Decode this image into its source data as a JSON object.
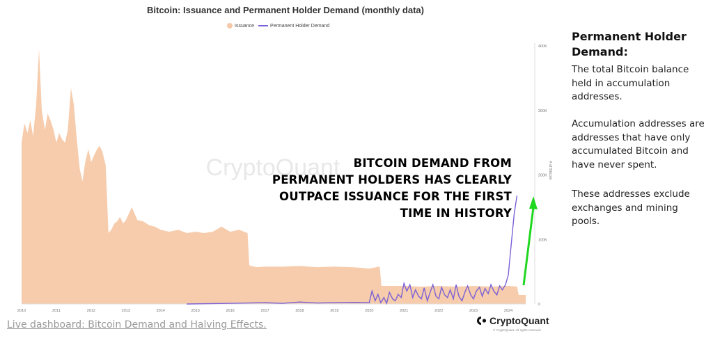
{
  "chart_title": "Bitcoin: Issuance and Permanent Holder Demand (monthly data)",
  "legend": [
    {
      "label": "Issuance",
      "color": "#f5c9a8"
    },
    {
      "label": "Permanent Holder Demand",
      "color": "#7b61d6"
    }
  ],
  "watermark": "CryptoQuant",
  "annotation": [
    "BITCOIN DEMAND FROM",
    "PERMANENT HOLDERS HAS CLEARLY",
    "OUTPACE ISSUANCE FOR THE FIRST",
    "TIME IN HISTORY"
  ],
  "sidebar": {
    "heading": "Permanent Holder Demand:",
    "paragraphs": [
      "The total Bitcoin balance held in accumulation addresses.",
      "Accumulation addresses are addresses that have only accumulated Bitcoin and have never spent.",
      "These addresses exclude exchanges and mining pools."
    ]
  },
  "footer": {
    "link": "Live dashboard: Bitcoin Demand and Halving Effects.",
    "brand": "CryptoQuant",
    "copyright": "© CryptoQuant. All rights reserved."
  },
  "colors": {
    "issuance": "#f5c9a8",
    "demand": "#7b61d6",
    "arrow": "#1fd71f"
  },
  "chart_data": {
    "type": "area",
    "title": "Bitcoin: Issuance and Permanent Holder Demand (monthly data)",
    "xlabel": "",
    "ylabel": "# of Bitcoin",
    "x_ticks": [
      "2010",
      "2011",
      "2012",
      "2013",
      "2014",
      "2015",
      "2016",
      "2017",
      "2018",
      "2019",
      "2020",
      "2021",
      "2022",
      "2023",
      "2024"
    ],
    "y_ticks": [
      "0",
      "100K",
      "200K",
      "300K",
      "400K"
    ],
    "ylim": [
      0,
      400000
    ],
    "xlim": [
      2010.0,
      2024.5
    ],
    "grid": false,
    "legend_position": "top-center",
    "series": [
      {
        "name": "Issuance",
        "type": "area",
        "x": [
          2010.0,
          2010.08,
          2010.17,
          2010.25,
          2010.33,
          2010.42,
          2010.5,
          2010.58,
          2010.67,
          2010.75,
          2010.83,
          2010.92,
          2011.0,
          2011.08,
          2011.17,
          2011.25,
          2011.33,
          2011.42,
          2011.5,
          2011.58,
          2011.67,
          2011.75,
          2011.83,
          2011.92,
          2012.0,
          2012.08,
          2012.17,
          2012.25,
          2012.33,
          2012.42,
          2012.5,
          2012.58,
          2012.67,
          2012.75,
          2012.83,
          2012.92,
          2013.0,
          2013.17,
          2013.33,
          2013.5,
          2013.67,
          2013.83,
          2014.0,
          2014.25,
          2014.5,
          2014.75,
          2015.0,
          2015.25,
          2015.5,
          2015.75,
          2016.0,
          2016.25,
          2016.5,
          2016.55,
          2016.75,
          2017.0,
          2017.5,
          2018.0,
          2018.5,
          2019.0,
          2019.5,
          2020.0,
          2020.3,
          2020.35,
          2020.6,
          2021.0,
          2021.5,
          2022.0,
          2022.5,
          2023.0,
          2023.5,
          2024.0,
          2024.25,
          2024.3,
          2024.5
        ],
        "values": [
          250000,
          280000,
          265000,
          285000,
          260000,
          310000,
          395000,
          300000,
          270000,
          295000,
          285000,
          270000,
          250000,
          265000,
          255000,
          250000,
          270000,
          335000,
          310000,
          260000,
          210000,
          190000,
          220000,
          240000,
          220000,
          230000,
          240000,
          245000,
          235000,
          215000,
          110000,
          115000,
          125000,
          128000,
          135000,
          125000,
          130000,
          150000,
          130000,
          128000,
          122000,
          120000,
          115000,
          112000,
          115000,
          110000,
          112000,
          110000,
          112000,
          120000,
          112000,
          115000,
          110000,
          60000,
          57000,
          58000,
          58000,
          59000,
          57000,
          58000,
          57000,
          55000,
          58000,
          28000,
          28000,
          28000,
          27000,
          28000,
          27000,
          28000,
          27000,
          28000,
          27000,
          14000,
          14000
        ]
      },
      {
        "name": "Permanent Holder Demand",
        "type": "line",
        "x": [
          2014.75,
          2016.0,
          2016.5,
          2017.0,
          2017.5,
          2018.0,
          2018.5,
          2019.0,
          2019.5,
          2020.0,
          2020.08,
          2020.17,
          2020.25,
          2020.33,
          2020.42,
          2020.5,
          2020.58,
          2020.67,
          2020.75,
          2020.83,
          2020.92,
          2021.0,
          2021.08,
          2021.17,
          2021.25,
          2021.33,
          2021.42,
          2021.5,
          2021.58,
          2021.67,
          2021.75,
          2021.83,
          2021.92,
          2022.0,
          2022.08,
          2022.17,
          2022.25,
          2022.33,
          2022.42,
          2022.5,
          2022.58,
          2022.67,
          2022.75,
          2022.83,
          2022.92,
          2023.0,
          2023.08,
          2023.17,
          2023.25,
          2023.33,
          2023.42,
          2023.5,
          2023.58,
          2023.67,
          2023.75,
          2023.83,
          2023.92,
          2024.0,
          2024.08,
          2024.17,
          2024.25
        ],
        "values": [
          0,
          1000,
          1500,
          2000,
          1000,
          3000,
          1500,
          2000,
          2500,
          2000,
          20000,
          5000,
          15000,
          2000,
          10000,
          1000,
          18000,
          8000,
          5000,
          15000,
          10000,
          32000,
          20000,
          30000,
          10000,
          22000,
          12000,
          8000,
          25000,
          5000,
          18000,
          30000,
          12000,
          8000,
          26000,
          14000,
          10000,
          22000,
          8000,
          30000,
          12000,
          5000,
          18000,
          28000,
          14000,
          8000,
          20000,
          26000,
          12000,
          24000,
          16000,
          30000,
          20000,
          14000,
          28000,
          22000,
          30000,
          45000,
          90000,
          140000,
          168000
        ]
      }
    ]
  }
}
